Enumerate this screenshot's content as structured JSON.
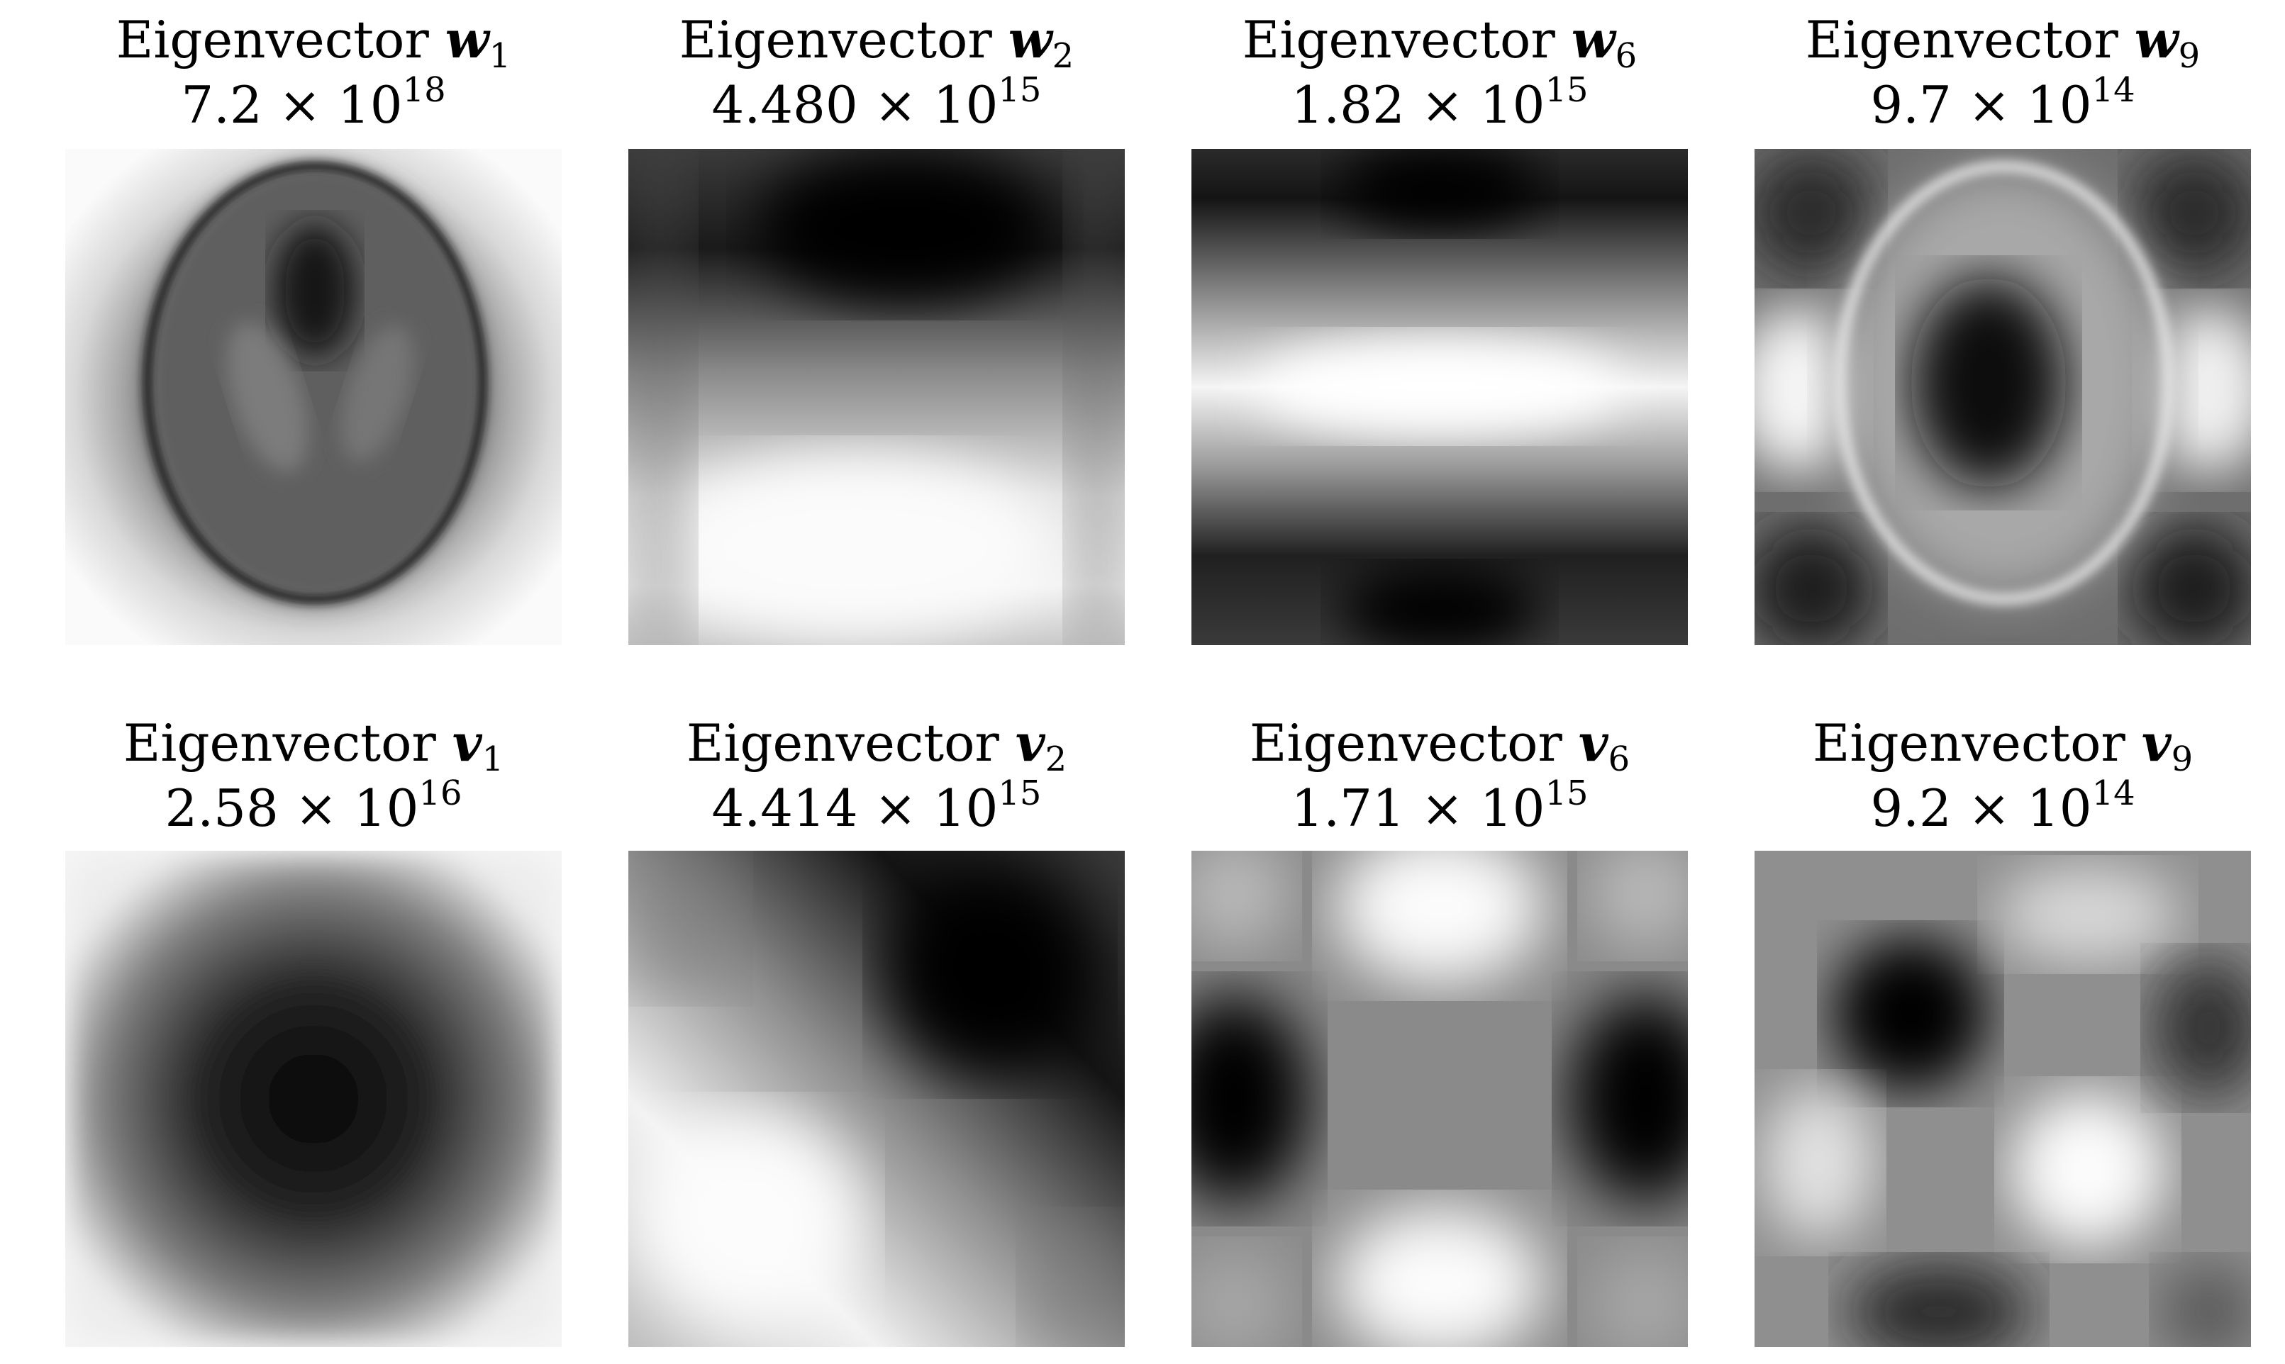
{
  "figure": {
    "panels": [
      {
        "label": "Eigenvector",
        "vector": "w",
        "index": "1",
        "mantissa": "7.2",
        "times": "×",
        "base": "10",
        "exponent": "18"
      },
      {
        "label": "Eigenvector",
        "vector": "w",
        "index": "2",
        "mantissa": "4.480",
        "times": "×",
        "base": "10",
        "exponent": "15"
      },
      {
        "label": "Eigenvector",
        "vector": "w",
        "index": "6",
        "mantissa": "1.82",
        "times": "×",
        "base": "10",
        "exponent": "15"
      },
      {
        "label": "Eigenvector",
        "vector": "w",
        "index": "9",
        "mantissa": "9.7",
        "times": "×",
        "base": "10",
        "exponent": "14"
      },
      {
        "label": "Eigenvector",
        "vector": "v",
        "index": "1",
        "mantissa": "2.58",
        "times": "×",
        "base": "10",
        "exponent": "16"
      },
      {
        "label": "Eigenvector",
        "vector": "v",
        "index": "2",
        "mantissa": "4.414",
        "times": "×",
        "base": "10",
        "exponent": "15"
      },
      {
        "label": "Eigenvector",
        "vector": "v",
        "index": "6",
        "mantissa": "1.71",
        "times": "×",
        "base": "10",
        "exponent": "15"
      },
      {
        "label": "Eigenvector",
        "vector": "v",
        "index": "9",
        "mantissa": "9.2",
        "times": "×",
        "base": "10",
        "exponent": "14"
      }
    ]
  }
}
